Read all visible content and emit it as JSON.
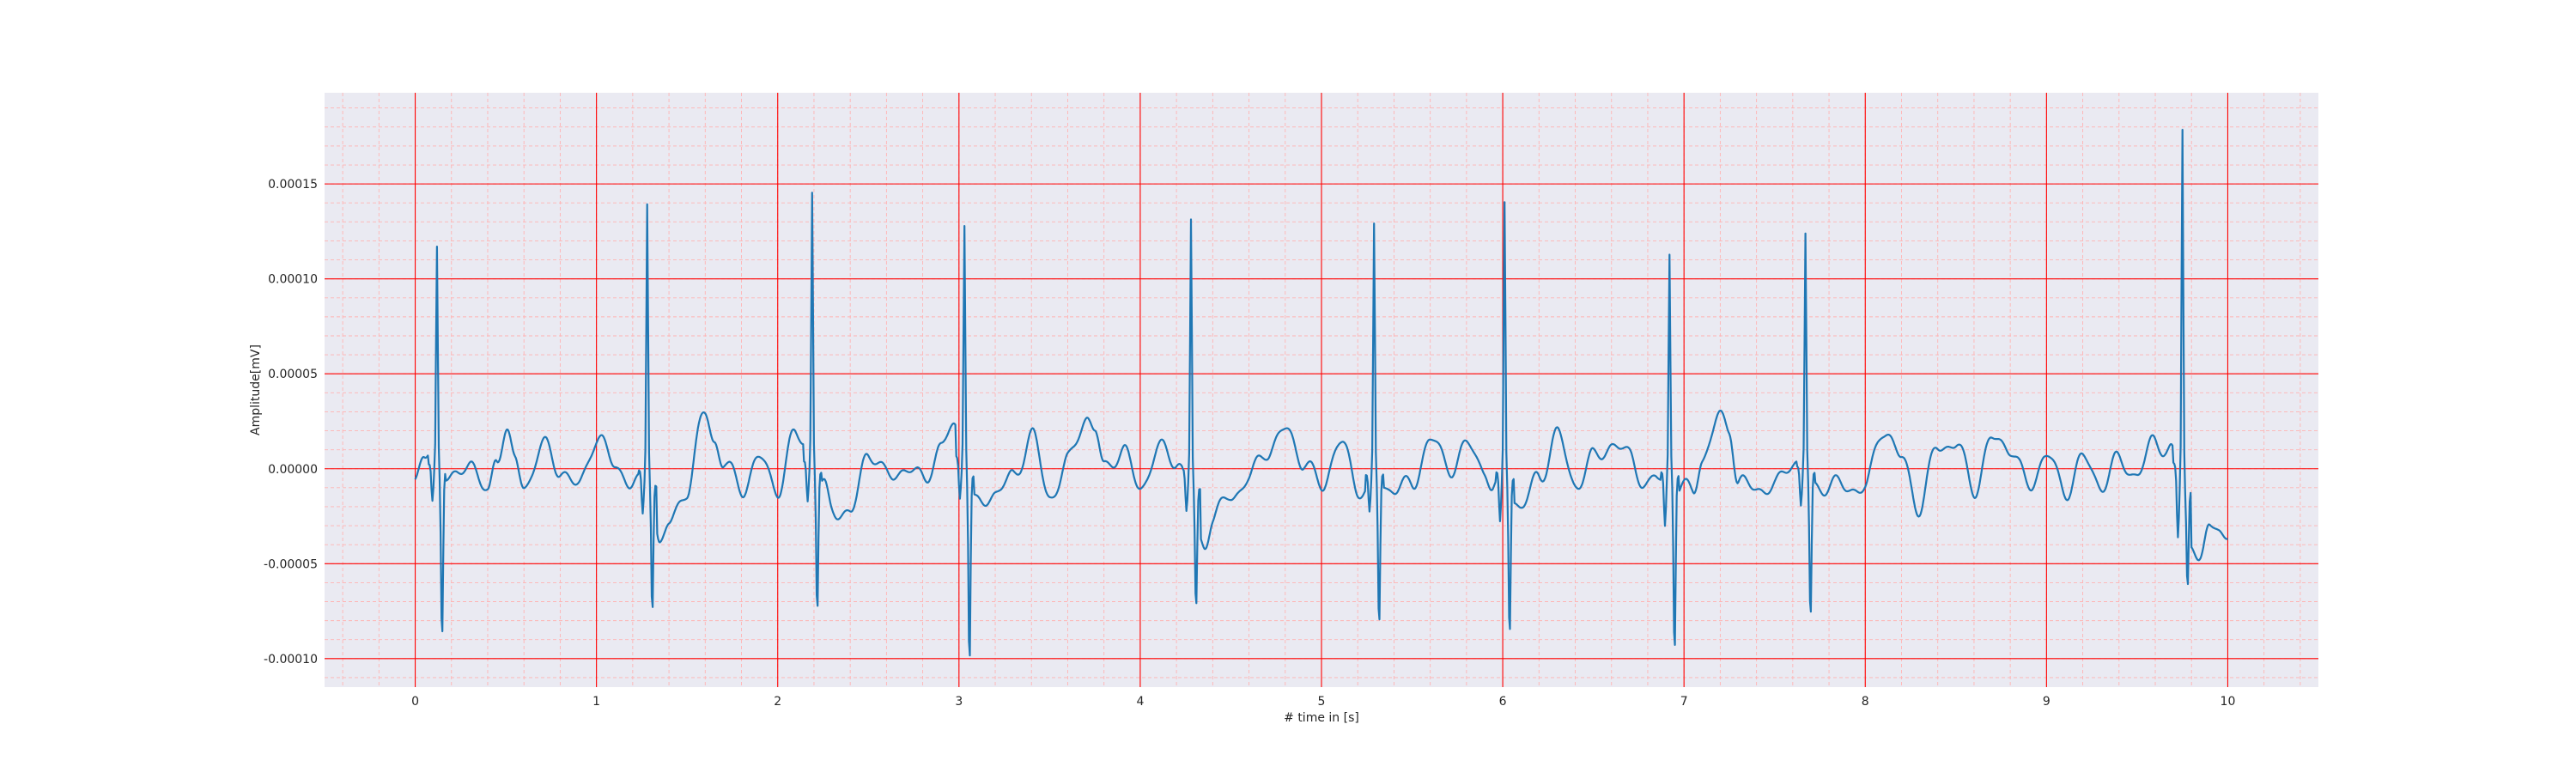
{
  "chart_data": {
    "type": "line",
    "title": "",
    "xlabel": "# time in [s]",
    "ylabel": "Amplitude[mV]",
    "xlim": [
      -0.5,
      10.5
    ],
    "ylim": [
      -0.000115,
      0.000198
    ],
    "grid": {
      "major": true,
      "minor": true,
      "major_color": "#ff0000",
      "minor_color": "#ffb3b3"
    },
    "background_color": "#eaeaf2",
    "line_color": "#1f77b4",
    "xticks": [
      0,
      1,
      2,
      3,
      4,
      5,
      6,
      7,
      8,
      9,
      10
    ],
    "xtick_labels": [
      "0",
      "1",
      "2",
      "3",
      "4",
      "5",
      "6",
      "7",
      "8",
      "9",
      "10"
    ],
    "yticks": [
      -0.0001,
      -5e-05,
      0.0,
      5e-05,
      0.0001,
      0.00015
    ],
    "ytick_labels": [
      "-0.00010",
      "-0.00005",
      "0.00000",
      "0.00005",
      "0.00010",
      "0.00015"
    ],
    "sample_interval_s": 0.01,
    "beats": [
      {
        "t": 0.12,
        "r": 0.000115,
        "q": -2e-05,
        "s": -9e-05
      },
      {
        "t": 1.28,
        "r": 0.000143,
        "q": -2.2e-05,
        "s": -7.2e-05
      },
      {
        "t": 2.19,
        "r": 0.000144,
        "q": -2.1e-05,
        "s": -7.5e-05
      },
      {
        "t": 3.03,
        "r": 0.000128,
        "q": -2e-05,
        "s": -0.000101
      },
      {
        "t": 4.28,
        "r": 0.000137,
        "q": -2e-05,
        "s": -6.6e-05
      },
      {
        "t": 5.29,
        "r": 0.000132,
        "q": -2e-05,
        "s": -8.1e-05
      },
      {
        "t": 6.01,
        "r": 0.000144,
        "q": -2.6e-05,
        "s": -8.4e-05
      },
      {
        "t": 6.92,
        "r": 0.000116,
        "q": -2.8e-05,
        "s": -9.4e-05
      },
      {
        "t": 7.67,
        "r": 0.000125,
        "q": -2e-05,
        "s": -7.8e-05
      },
      {
        "t": 9.75,
        "r": 0.000185,
        "q": -3.5e-05,
        "s": -5.3e-05
      }
    ],
    "baseline": {
      "t": [
        0.0,
        0.05,
        0.1,
        0.2,
        0.3,
        0.4,
        0.45,
        0.5,
        0.55,
        0.6,
        0.7,
        0.8,
        0.9,
        1.0,
        1.1,
        1.2,
        1.3,
        1.35,
        1.4,
        1.5,
        1.6,
        1.65,
        1.7,
        1.8,
        1.9,
        2.0,
        2.1,
        2.15,
        2.25,
        2.3,
        2.4,
        2.5,
        2.6,
        2.7,
        2.8,
        2.9,
        2.97,
        3.1,
        3.2,
        3.3,
        3.4,
        3.5,
        3.6,
        3.7,
        3.75,
        3.8,
        3.9,
        4.0,
        4.1,
        4.2,
        4.35,
        4.4,
        4.5,
        4.6,
        4.7,
        4.8,
        4.9,
        5.0,
        5.1,
        5.2,
        5.35,
        5.4,
        5.5,
        5.6,
        5.7,
        5.8,
        5.9,
        5.95,
        6.05,
        6.1,
        6.2,
        6.3,
        6.4,
        6.5,
        6.6,
        6.7,
        6.8,
        6.85,
        6.98,
        7.05,
        7.1,
        7.2,
        7.25,
        7.3,
        7.4,
        7.5,
        7.6,
        7.72,
        7.8,
        7.9,
        8.0,
        8.1,
        8.2,
        8.3,
        8.4,
        8.5,
        8.6,
        8.7,
        8.8,
        8.9,
        9.0,
        9.1,
        9.2,
        9.3,
        9.4,
        9.5,
        9.6,
        9.68,
        9.8,
        9.85,
        9.9,
        9.95,
        10.0
      ],
      "v": [
        -8e-06,
        5e-06,
        1e-05,
        -8e-06,
        5e-06,
        -1.5e-05,
        8e-06,
        2e-05,
        4e-06,
        -1e-05,
        1.2e-05,
        0.0,
        -1e-05,
        1.7e-05,
        2e-06,
        -8e-06,
        -1e-05,
        -4e-05,
        -3e-05,
        -1e-05,
        3e-05,
        1.5e-05,
        3e-06,
        -1e-05,
        5e-06,
        -1e-05,
        1.8e-05,
        1.5e-05,
        -1e-05,
        -2e-05,
        -2.5e-05,
        1e-05,
        -4e-06,
        0.0,
        -5e-06,
        1e-05,
        2.3e-05,
        -2e-05,
        -1.2e-05,
        -5e-06,
        1.8e-05,
        -1.5e-05,
        3e-06,
        2.8e-05,
        2e-05,
        0.0,
        1e-05,
        -1e-05,
        1e-05,
        5e-06,
        -4e-05,
        -2.5e-05,
        -1.5e-05,
        -5e-06,
        1e-05,
        2e-05,
        5e-06,
        -1e-05,
        1.5e-05,
        -1e-05,
        -1.2e-05,
        -8e-06,
        -1e-05,
        1.7e-05,
        0.0,
        1.2e-05,
        0.0,
        -1e-05,
        -1.5e-05,
        -2e-05,
        -5e-06,
        1.8e-05,
        -8e-06,
        5e-06,
        1.3e-05,
        7e-06,
        -1e-05,
        -5e-06,
        -1.2e-05,
        -1e-05,
        5e-06,
        2.7e-05,
        2.3e-05,
        -8e-06,
        -1e-05,
        -1e-05,
        5e-06,
        -1e-05,
        -8e-06,
        -1e-05,
        -1e-05,
        2.2e-05,
        5e-06,
        -2e-05,
        1.2e-05,
        1.3e-05,
        -1e-05,
        1.5e-05,
        1.2e-05,
        -1e-05,
        8e-06,
        -1.2e-05,
        5e-06,
        -8e-06,
        4e-06,
        -3e-06,
        1.5e-05,
        1e-05,
        -4e-05,
        -4.5e-05,
        -3.5e-05,
        -2.8e-05,
        -3.7e-05
      ]
    }
  }
}
